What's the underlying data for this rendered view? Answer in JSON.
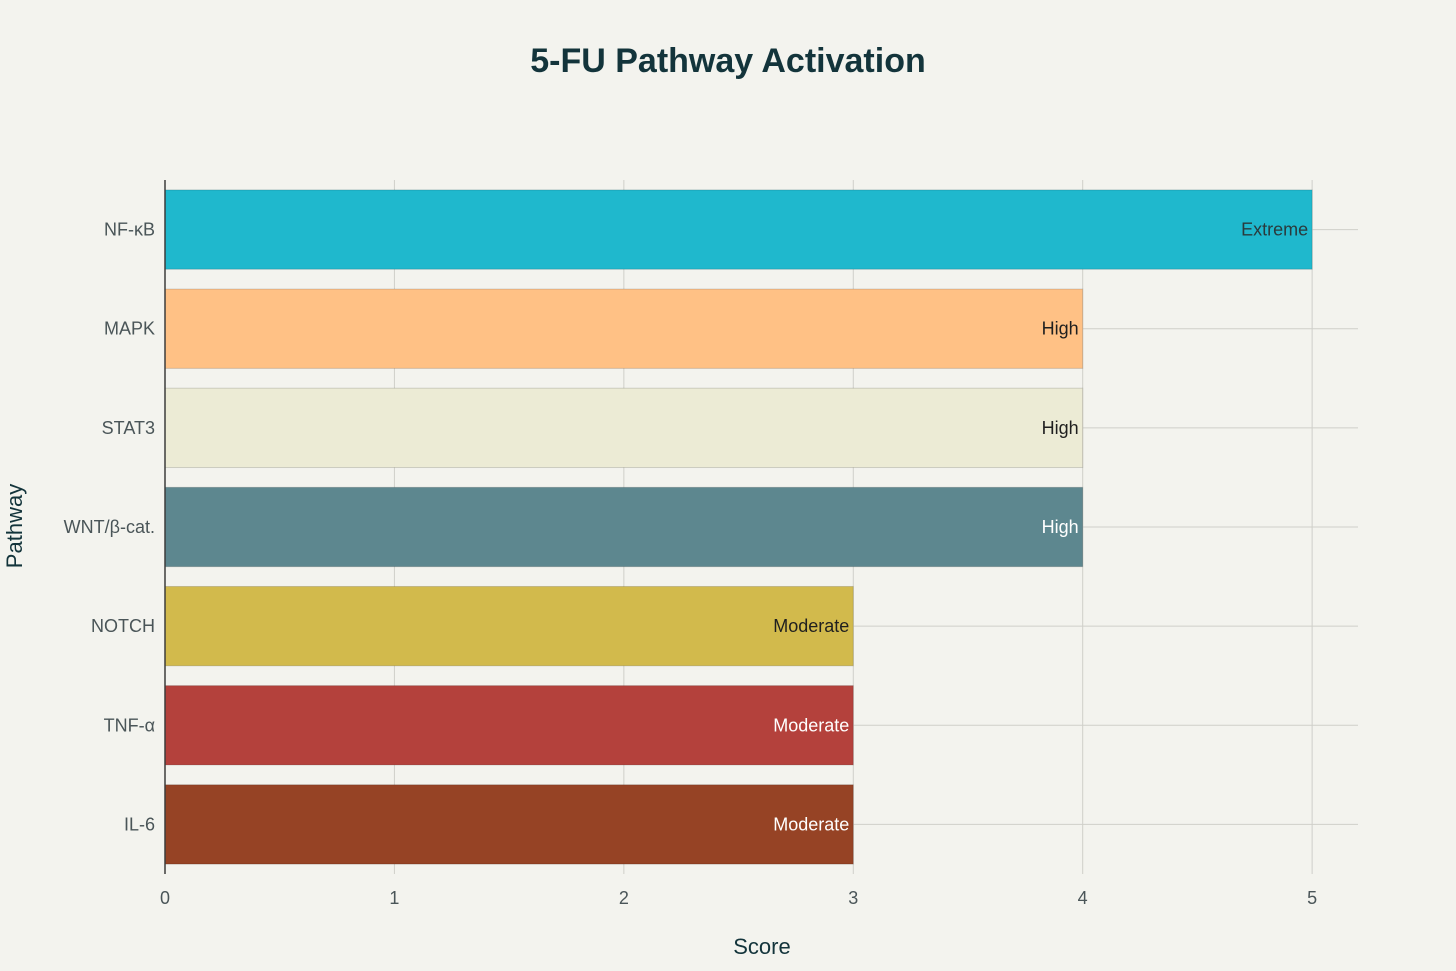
{
  "chart_data": {
    "type": "bar",
    "orientation": "horizontal",
    "title": "5-FU Pathway Activation",
    "xlabel": "Score",
    "ylabel": "Pathway",
    "xlim": [
      0,
      5.2
    ],
    "xticks": [
      0,
      1,
      2,
      3,
      4,
      5
    ],
    "grid": true,
    "categories": [
      "NF-κB",
      "MAPK",
      "STAT3",
      "WNT/β-cat.",
      "NOTCH",
      "TNF-α",
      "IL-6"
    ],
    "values": [
      5,
      4,
      4,
      4,
      3,
      3,
      3
    ],
    "labels": [
      "Extreme",
      "High",
      "High",
      "High",
      "Moderate",
      "Moderate",
      "Moderate"
    ],
    "colors": [
      "#1fb8cd",
      "#ffc185",
      "#eceBd5",
      "#5d878f",
      "#d2ba4c",
      "#b4413c",
      "#964325"
    ],
    "label_colors": [
      "#2a3a3c",
      "#1f1f1f",
      "#1f1f1f",
      "#ffffff",
      "#1f1f1f",
      "#ffffff",
      "#ffffff"
    ]
  }
}
